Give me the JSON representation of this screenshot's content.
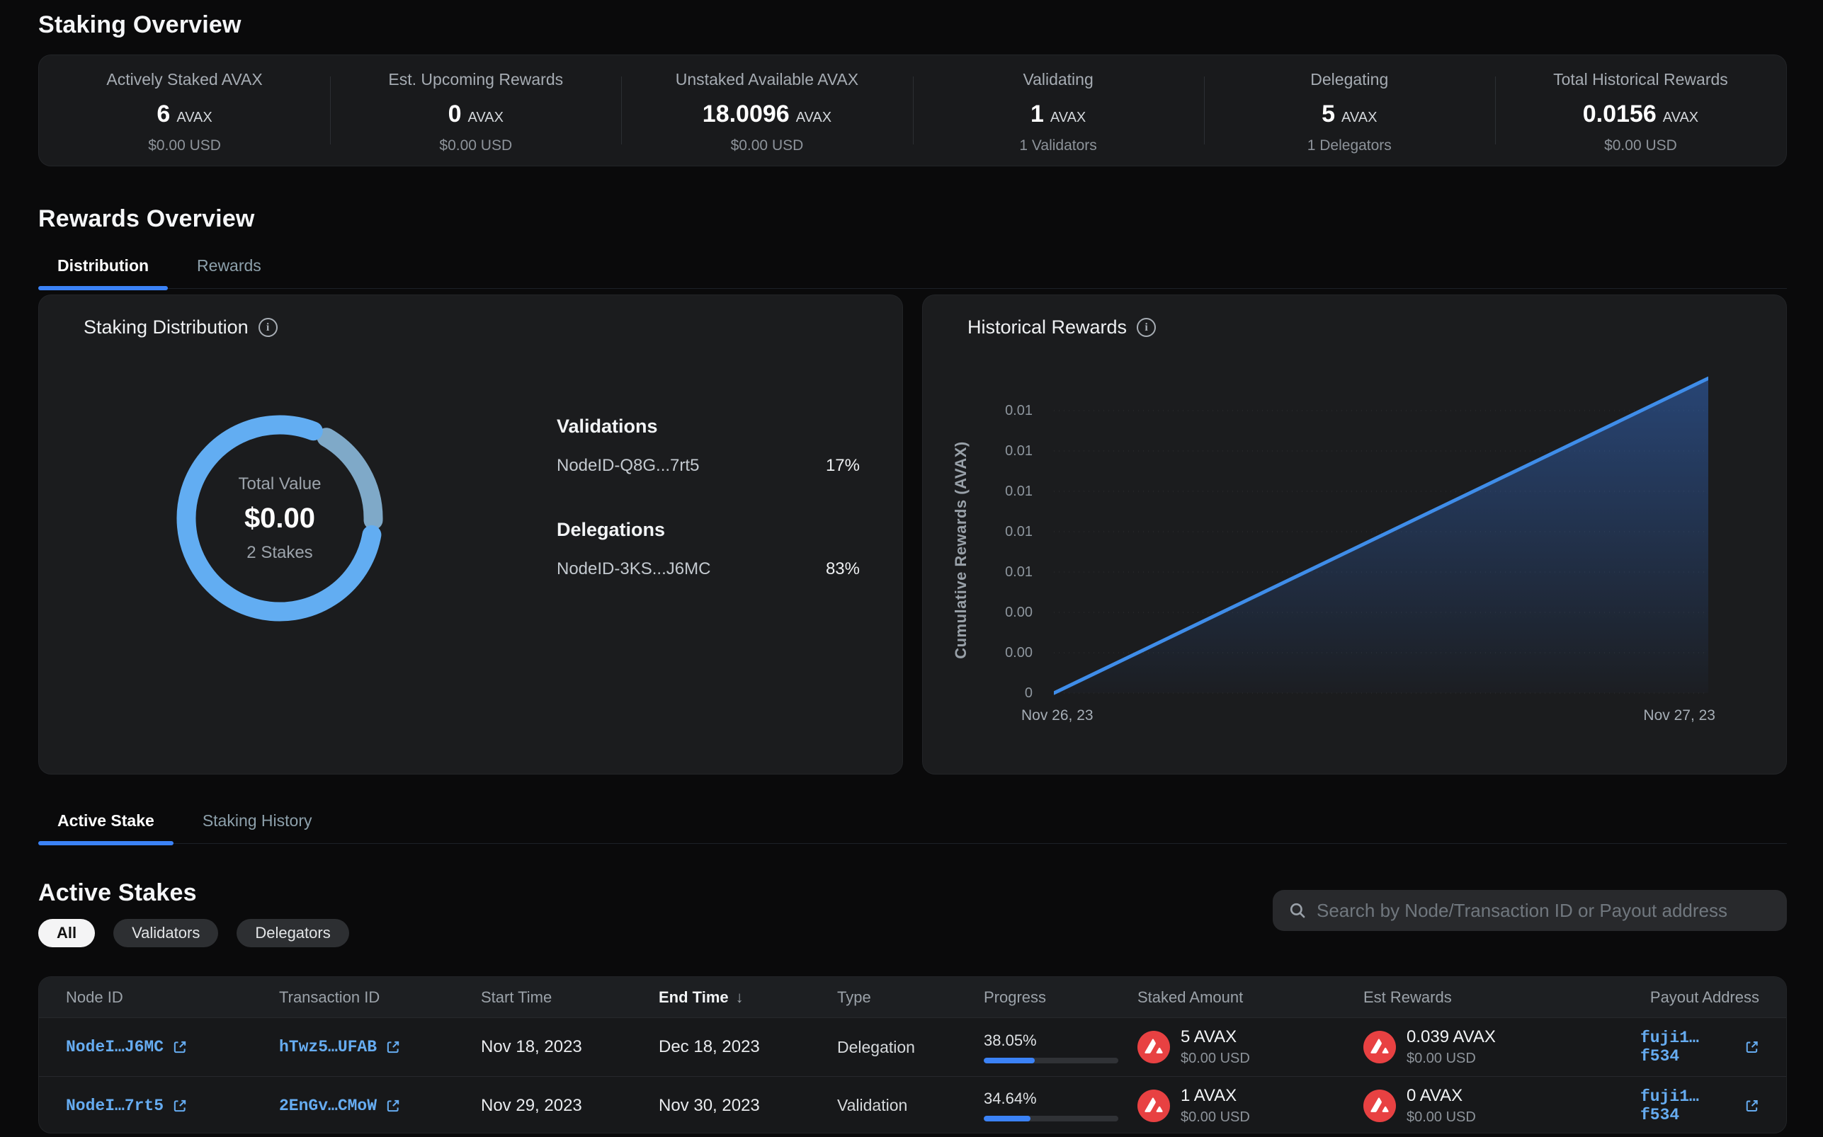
{
  "staking_overview": {
    "heading": "Staking Overview",
    "stats": [
      {
        "label": "Actively Staked AVAX",
        "value": "6",
        "unit": "AVAX",
        "sub": "$0.00 USD"
      },
      {
        "label": "Est. Upcoming Rewards",
        "value": "0",
        "unit": "AVAX",
        "sub": "$0.00 USD"
      },
      {
        "label": "Unstaked Available AVAX",
        "value": "18.0096",
        "unit": "AVAX",
        "sub": "$0.00 USD"
      },
      {
        "label": "Validating",
        "value": "1",
        "unit": "AVAX",
        "sub": "1 Validators"
      },
      {
        "label": "Delegating",
        "value": "5",
        "unit": "AVAX",
        "sub": "1 Delegators"
      },
      {
        "label": "Total Historical Rewards",
        "value": "0.0156",
        "unit": "AVAX",
        "sub": "$0.00 USD"
      }
    ]
  },
  "rewards_overview": {
    "heading": "Rewards Overview",
    "tabs": [
      {
        "label": "Distribution",
        "active": true
      },
      {
        "label": "Rewards",
        "active": false
      }
    ]
  },
  "staking_distribution": {
    "title": "Staking Distribution",
    "center": {
      "label": "Total Value",
      "value": "$0.00",
      "sub": "2 Stakes"
    },
    "validations": {
      "heading": "Validations",
      "items": [
        {
          "node": "NodeID-Q8G...7rt5",
          "pct": "17%"
        }
      ]
    },
    "delegations": {
      "heading": "Delegations",
      "items": [
        {
          "node": "NodeID-3KS...J6MC",
          "pct": "83%"
        }
      ]
    }
  },
  "historical_rewards": {
    "title": "Historical Rewards",
    "ylabel": "Cumulative Rewards (AVAX)",
    "xticks": [
      "Nov 26, 23",
      "Nov 27, 23"
    ]
  },
  "chart_data": [
    {
      "type": "pie",
      "title": "Staking Distribution",
      "labels": [
        "Validations NodeID-Q8G...7rt5",
        "Delegations NodeID-3KS...J6MC"
      ],
      "values": [
        17,
        83
      ],
      "unit": "%",
      "center": {
        "label": "Total Value",
        "value": "$0.00",
        "sub": "2 Stakes"
      },
      "colors": [
        "#7fa9c8",
        "#62adf2"
      ],
      "style": "donut"
    },
    {
      "type": "line",
      "title": "Historical Rewards",
      "xlabel": "",
      "ylabel": "Cumulative Rewards (AVAX)",
      "x": [
        "Nov 26, 23",
        "Nov 27, 23"
      ],
      "series": [
        {
          "name": "Cumulative Rewards",
          "values": [
            0,
            0.0156
          ]
        }
      ],
      "ylim": [
        0,
        0.016
      ],
      "ytick_step": 0.002,
      "ytick_labels_top_to_bottom": [
        "0.01",
        "0.01",
        "0.01",
        "0.01",
        "0.01",
        "0.00",
        "0.00",
        "0"
      ],
      "grid": true,
      "legend": false,
      "line_color": "#3f8de9",
      "fill": "blue-gradient-area"
    }
  ],
  "stake_tabs": [
    {
      "label": "Active Stake",
      "active": true
    },
    {
      "label": "Staking History",
      "active": false
    }
  ],
  "active_stakes": {
    "heading": "Active Stakes",
    "filters": [
      {
        "label": "All",
        "active": true
      },
      {
        "label": "Validators",
        "active": false
      },
      {
        "label": "Delegators",
        "active": false
      }
    ],
    "search_placeholder": "Search by Node/Transaction ID or Payout address",
    "table": {
      "columns": [
        "Node ID",
        "Transaction ID",
        "Start Time",
        "End Time",
        "Type",
        "Progress",
        "Staked Amount",
        "Est Rewards",
        "Payout Address"
      ],
      "sorted_by": "End Time",
      "sort_direction": "desc",
      "sort_arrow": "↓",
      "rows": [
        {
          "node_id": "NodeI…J6MC",
          "tx_id": "hTwz5…UFAB",
          "start": "Nov 18, 2023",
          "end": "Dec 18, 2023",
          "type": "Delegation",
          "progress_label": "38.05%",
          "progress_pct": 38.05,
          "staked": "5 AVAX",
          "staked_usd": "$0.00 USD",
          "rewards": "0.039 AVAX",
          "rewards_usd": "$0.00 USD",
          "payout": "fuji1…f534"
        },
        {
          "node_id": "NodeI…7rt5",
          "tx_id": "2EnGv…CMoW",
          "start": "Nov 29, 2023",
          "end": "Nov 30, 2023",
          "type": "Validation",
          "progress_label": "34.64%",
          "progress_pct": 34.64,
          "staked": "1 AVAX",
          "staked_usd": "$0.00 USD",
          "rewards": "0 AVAX",
          "rewards_usd": "$0.00 USD",
          "payout": "fuji1…f534"
        }
      ]
    }
  },
  "colors": {
    "accent_blue": "#3b82f6",
    "donut_blue": "#62adf2",
    "donut_light": "#7fa9c8",
    "link_blue": "#66acf1",
    "avax_red": "#e84142",
    "panel_bg": "#1b1c1e",
    "page_bg": "#0a0a0b"
  }
}
